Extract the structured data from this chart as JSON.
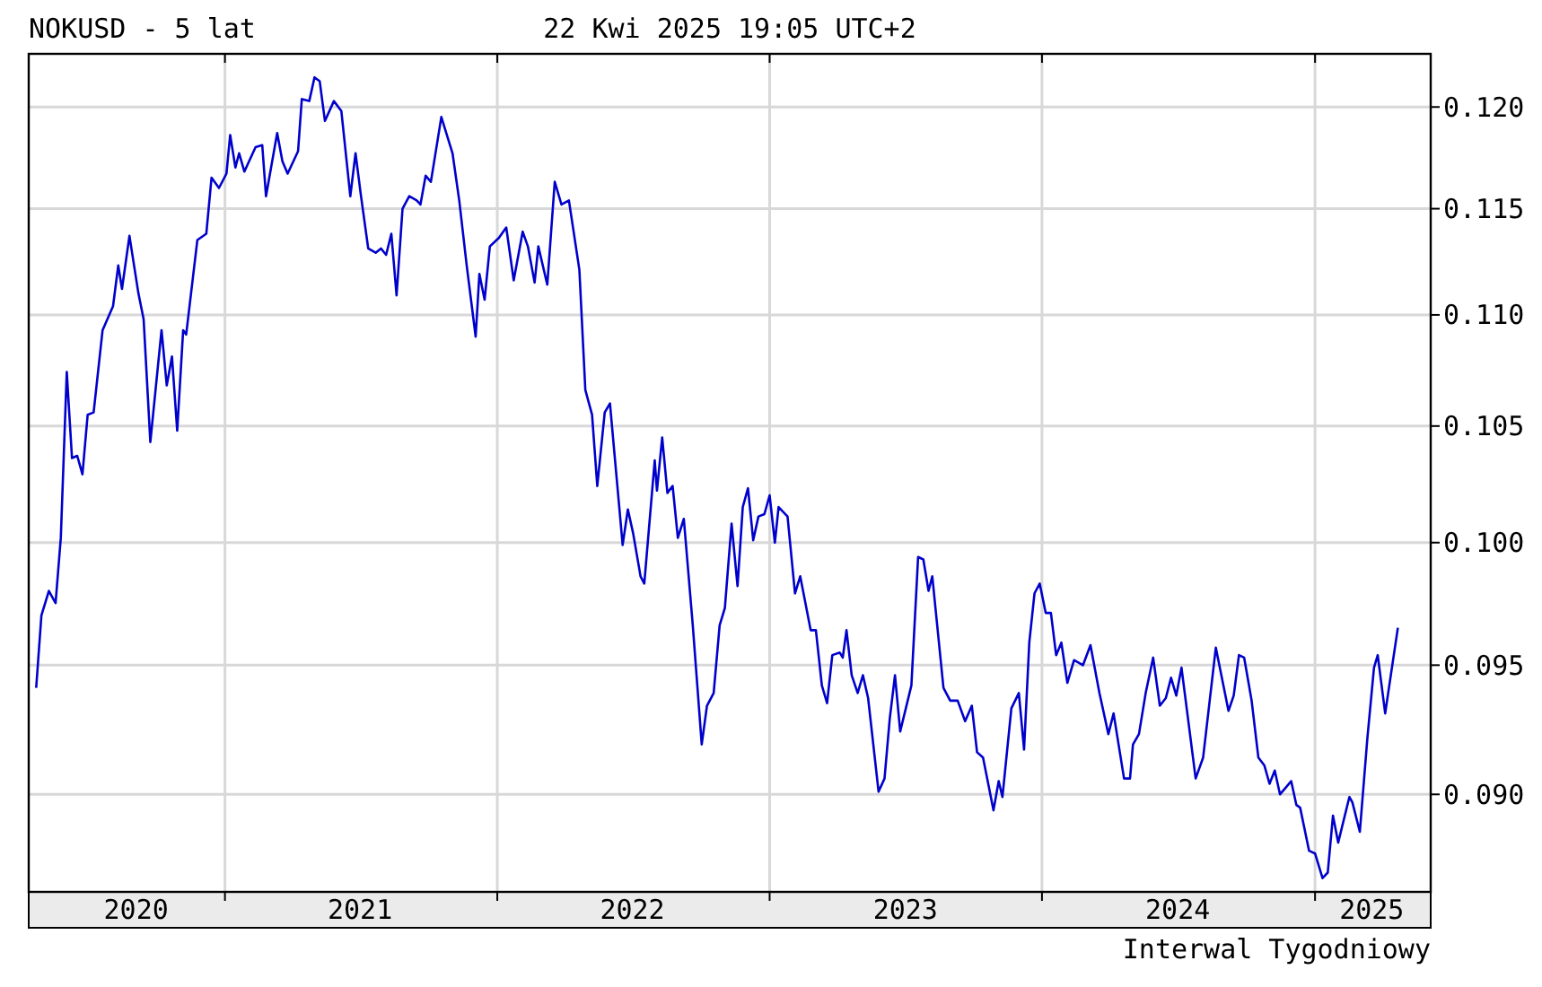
{
  "chart_data": {
    "type": "line",
    "title": "NOKUSD - 5 lat",
    "subtitle": "22 Kwi 2025 19:05 UTC+2",
    "annotations": [
      "Interwal Tygodniowy"
    ],
    "log": true,
    "grid": true,
    "marker": "none",
    "line_style": "solid",
    "xlim": [
      "2020-04-13",
      "2025-06-05"
    ],
    "xticks": [
      {
        "value": "2020-09-04",
        "label": "2020"
      },
      {
        "value": "2021-01-01",
        "label": null
      },
      {
        "value": "2021-07-01",
        "label": "2021"
      },
      {
        "value": "2022-01-01",
        "label": null
      },
      {
        "value": "2022-07-01",
        "label": "2022"
      },
      {
        "value": "2023-01-01",
        "label": null
      },
      {
        "value": "2023-07-02",
        "label": "2023"
      },
      {
        "value": "2024-01-01",
        "label": null
      },
      {
        "value": "2024-07-01",
        "label": "2024"
      },
      {
        "value": "2025-01-01",
        "label": null
      },
      {
        "value": "2025-03-18",
        "label": "2025"
      }
    ],
    "ylim": [
      0.0864,
      0.1227
    ],
    "yticks": [
      {
        "value": 0.09,
        "label": "0.090"
      },
      {
        "value": 0.095,
        "label": "0.095"
      },
      {
        "value": 0.1,
        "label": "0.100"
      },
      {
        "value": 0.105,
        "label": "0.105"
      },
      {
        "value": 0.11,
        "label": "0.110"
      },
      {
        "value": 0.115,
        "label": "0.115"
      },
      {
        "value": 0.12,
        "label": "0.120"
      }
    ],
    "x": [
      "2020-04-23",
      "2020-04-30",
      "2020-05-10",
      "2020-05-19",
      "2020-05-26",
      "2020-06-03",
      "2020-06-10",
      "2020-06-17",
      "2020-06-24",
      "2020-07-01",
      "2020-07-09",
      "2020-07-21",
      "2020-08-04",
      "2020-08-11",
      "2020-08-16",
      "2020-08-26",
      "2020-09-07",
      "2020-09-14",
      "2020-09-23",
      "2020-10-08",
      "2020-10-15",
      "2020-10-22",
      "2020-10-29",
      "2020-11-06",
      "2020-11-10",
      "2020-11-25",
      "2020-12-07",
      "2020-12-14",
      "2020-12-24",
      "2021-01-03",
      "2021-01-08",
      "2021-01-15",
      "2021-01-20",
      "2021-01-27",
      "2021-02-11",
      "2021-02-20",
      "2021-02-25",
      "2021-03-12",
      "2021-03-19",
      "2021-03-26",
      "2021-04-09",
      "2021-04-14",
      "2021-04-24",
      "2021-05-01",
      "2021-05-08",
      "2021-05-15",
      "2021-05-27",
      "2021-06-06",
      "2021-06-18",
      "2021-06-25",
      "2021-07-02",
      "2021-07-12",
      "2021-07-22",
      "2021-07-29",
      "2021-08-05",
      "2021-08-12",
      "2021-08-19",
      "2021-08-27",
      "2021-09-05",
      "2021-09-15",
      "2021-09-20",
      "2021-09-27",
      "2021-10-04",
      "2021-10-18",
      "2021-11-02",
      "2021-11-11",
      "2021-11-21",
      "2021-12-03",
      "2021-12-08",
      "2021-12-15",
      "2021-12-22",
      "2022-01-03",
      "2022-01-13",
      "2022-01-23",
      "2022-02-04",
      "2022-02-11",
      "2022-02-20",
      "2022-02-25",
      "2022-03-09",
      "2022-03-19",
      "2022-03-28",
      "2022-04-07",
      "2022-04-21",
      "2022-04-29",
      "2022-05-08",
      "2022-05-15",
      "2022-05-25",
      "2022-06-01",
      "2022-06-18",
      "2022-06-25",
      "2022-07-02",
      "2022-07-12",
      "2022-07-17",
      "2022-07-31",
      "2022-08-03",
      "2022-08-10",
      "2022-08-17",
      "2022-08-24",
      "2022-08-31",
      "2022-09-08",
      "2022-09-20",
      "2022-10-02",
      "2022-10-09",
      "2022-10-18",
      "2022-10-26",
      "2022-11-02",
      "2022-11-11",
      "2022-11-19",
      "2022-11-26",
      "2022-12-03",
      "2022-12-10",
      "2022-12-17",
      "2022-12-25",
      "2023-01-01",
      "2023-01-08",
      "2023-01-13",
      "2023-01-25",
      "2023-02-04",
      "2023-02-11",
      "2023-02-25",
      "2023-03-04",
      "2023-03-12",
      "2023-03-19",
      "2023-03-26",
      "2023-04-05",
      "2023-04-09",
      "2023-04-14",
      "2023-04-21",
      "2023-04-29",
      "2023-05-06",
      "2023-05-13",
      "2023-05-27",
      "2023-06-04",
      "2023-06-11",
      "2023-06-18",
      "2023-06-25",
      "2023-07-10",
      "2023-07-19",
      "2023-07-26",
      "2023-08-02",
      "2023-08-07",
      "2023-08-22",
      "2023-08-31",
      "2023-09-10",
      "2023-09-20",
      "2023-09-29",
      "2023-10-06",
      "2023-10-14",
      "2023-10-28",
      "2023-11-04",
      "2023-11-09",
      "2023-11-21",
      "2023-12-01",
      "2023-12-08",
      "2023-12-15",
      "2023-12-22",
      "2023-12-29",
      "2024-01-06",
      "2024-01-13",
      "2024-01-20",
      "2024-01-27",
      "2024-02-04",
      "2024-02-13",
      "2024-02-25",
      "2024-03-06",
      "2024-03-18",
      "2024-03-30",
      "2024-04-06",
      "2024-04-20",
      "2024-04-28",
      "2024-05-02",
      "2024-05-10",
      "2024-05-19",
      "2024-05-29",
      "2024-06-07",
      "2024-06-15",
      "2024-06-22",
      "2024-06-29",
      "2024-07-06",
      "2024-07-25",
      "2024-08-04",
      "2024-08-21",
      "2024-09-07",
      "2024-09-14",
      "2024-09-21",
      "2024-09-28",
      "2024-10-08",
      "2024-10-17",
      "2024-10-25",
      "2024-11-01",
      "2024-11-08",
      "2024-11-15",
      "2024-11-30",
      "2024-12-07",
      "2024-12-12",
      "2024-12-24",
      "2025-01-01",
      "2025-01-11",
      "2025-01-18",
      "2025-01-25",
      "2025-02-01",
      "2025-02-16",
      "2025-02-20",
      "2025-03-02",
      "2025-03-12",
      "2025-03-21",
      "2025-03-26",
      "2025-04-05",
      "2025-04-09",
      "2025-04-22"
    ],
    "series": [
      {
        "color": "#0000cc",
        "values": [
          0.0941,
          0.097,
          0.098,
          0.0975,
          0.1002,
          0.1074,
          0.1036,
          0.1037,
          0.1029,
          0.1055,
          0.1056,
          0.1093,
          0.1104,
          0.1123,
          0.1112,
          0.1137,
          0.111,
          0.1098,
          0.1043,
          0.1093,
          0.1068,
          0.1081,
          0.1048,
          0.1093,
          0.1091,
          0.1135,
          0.1138,
          0.1165,
          0.116,
          0.1167,
          0.1186,
          0.117,
          0.1177,
          0.1168,
          0.118,
          0.1181,
          0.1156,
          0.1187,
          0.1173,
          0.1167,
          0.1178,
          0.1204,
          0.1203,
          0.1215,
          0.1213,
          0.1193,
          0.1203,
          0.1198,
          0.1156,
          0.1177,
          0.1157,
          0.1131,
          0.1129,
          0.1131,
          0.1128,
          0.1138,
          0.1109,
          0.115,
          0.1156,
          0.1154,
          0.1152,
          0.1166,
          0.1163,
          0.1195,
          0.1177,
          0.1154,
          0.1123,
          0.109,
          0.1119,
          0.1107,
          0.1132,
          0.1136,
          0.1141,
          0.1116,
          0.1139,
          0.1132,
          0.1115,
          0.1132,
          0.1114,
          0.1163,
          0.1152,
          0.1154,
          0.1121,
          0.1066,
          0.1055,
          0.1024,
          0.1056,
          0.106,
          0.0999,
          0.1014,
          0.1004,
          0.0986,
          0.0983,
          0.1035,
          0.1022,
          0.1045,
          0.1021,
          0.1024,
          0.1002,
          0.101,
          0.0966,
          0.0919,
          0.0934,
          0.0939,
          0.0966,
          0.0973,
          0.1008,
          0.0982,
          0.1015,
          0.1023,
          0.1001,
          0.1011,
          0.1012,
          0.102,
          0.1,
          0.1015,
          0.1011,
          0.0979,
          0.0986,
          0.0964,
          0.0964,
          0.0942,
          0.0935,
          0.0954,
          0.0955,
          0.0953,
          0.0964,
          0.0946,
          0.0939,
          0.0946,
          0.0937,
          0.0901,
          0.0906,
          0.0929,
          0.0946,
          0.0924,
          0.0942,
          0.0994,
          0.0993,
          0.098,
          0.0986,
          0.0941,
          0.0936,
          0.0936,
          0.0928,
          0.0934,
          0.0916,
          0.0914,
          0.0894,
          0.0905,
          0.0899,
          0.0933,
          0.0939,
          0.0917,
          0.0959,
          0.0979,
          0.0983,
          0.0971,
          0.0971,
          0.0954,
          0.0959,
          0.0943,
          0.0952,
          0.095,
          0.0958,
          0.0939,
          0.0923,
          0.0931,
          0.0906,
          0.0906,
          0.0919,
          0.0923,
          0.0939,
          0.0953,
          0.0934,
          0.0937,
          0.0945,
          0.0938,
          0.0949,
          0.0906,
          0.0914,
          0.0957,
          0.0932,
          0.0938,
          0.0954,
          0.0953,
          0.0936,
          0.0914,
          0.0911,
          0.0904,
          0.0909,
          0.09,
          0.0905,
          0.0896,
          0.0895,
          0.0879,
          0.0878,
          0.0869,
          0.0871,
          0.0892,
          0.0882,
          0.0899,
          0.0897,
          0.0886,
          0.0921,
          0.0949,
          0.0954,
          0.0931,
          0.0939,
          0.0965
        ]
      }
    ]
  }
}
